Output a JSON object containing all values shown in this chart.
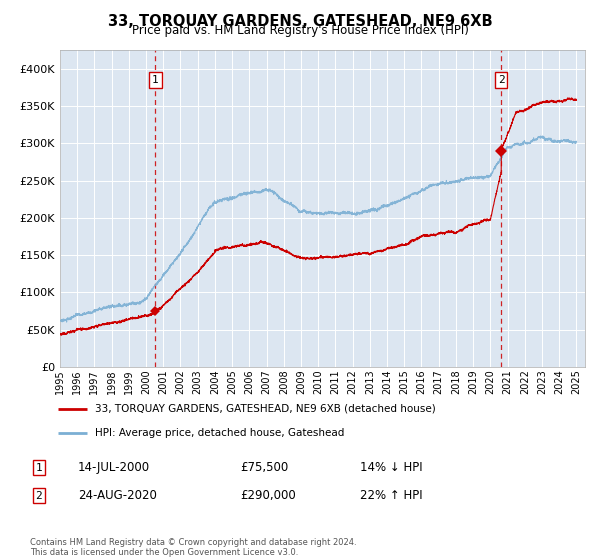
{
  "title": "33, TORQUAY GARDENS, GATESHEAD, NE9 6XB",
  "subtitle": "Price paid vs. HM Land Registry's House Price Index (HPI)",
  "plot_bg_color": "#dce6f1",
  "hpi_color": "#7bafd4",
  "price_color": "#cc0000",
  "dashed_color": "#cc0000",
  "ylim": [
    0,
    420000
  ],
  "yticks": [
    0,
    50000,
    100000,
    150000,
    200000,
    250000,
    300000,
    350000,
    400000
  ],
  "ytick_labels": [
    "£0",
    "£50K",
    "£100K",
    "£150K",
    "£200K",
    "£250K",
    "£300K",
    "£350K",
    "£400K"
  ],
  "legend_label_price": "33, TORQUAY GARDENS, GATESHEAD, NE9 6XB (detached house)",
  "legend_label_hpi": "HPI: Average price, detached house, Gateshead",
  "transaction1_date": "14-JUL-2000",
  "transaction1_price": "£75,500",
  "transaction1_hpi": "14% ↓ HPI",
  "transaction1_year": 2000.54,
  "transaction1_value": 75500,
  "transaction2_date": "24-AUG-2020",
  "transaction2_price": "£290,000",
  "transaction2_hpi": "22% ↑ HPI",
  "transaction2_year": 2020.64,
  "transaction2_value": 290000,
  "footer": "Contains HM Land Registry data © Crown copyright and database right 2024.\nThis data is licensed under the Open Government Licence v3.0.",
  "xstart": 1995,
  "xend": 2025
}
